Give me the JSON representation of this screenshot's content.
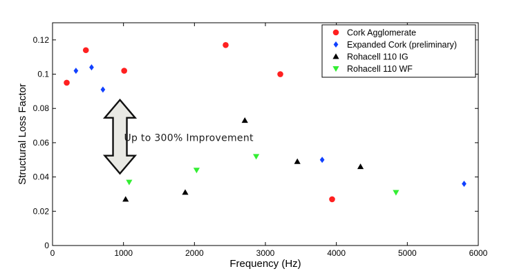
{
  "chart_data": {
    "type": "scatter",
    "title": "",
    "xlabel": "Frequency (Hz)",
    "ylabel": "Structural Loss Factor",
    "xlim": [
      0,
      6000
    ],
    "ylim": [
      0,
      0.13
    ],
    "xticks": [
      0,
      1000,
      2000,
      3000,
      4000,
      5000,
      6000
    ],
    "yticks": [
      0,
      0.02,
      0.04,
      0.06,
      0.08,
      0.1,
      0.12
    ],
    "xtick_labels": [
      "0",
      "1000",
      "2000",
      "3000",
      "4000",
      "5000",
      "6000"
    ],
    "ytick_labels": [
      "0",
      "0.02",
      "0.04",
      "0.06",
      "0.08",
      "0.1",
      "0.12"
    ],
    "grid": false,
    "legend_position": "top-right",
    "series": [
      {
        "name": "Cork Agglomerate",
        "color": "#ff2020",
        "marker": "circle",
        "x": [
          200,
          470,
          1010,
          2440,
          3210,
          3940
        ],
        "y": [
          0.095,
          0.114,
          0.102,
          0.117,
          0.1,
          0.027
        ]
      },
      {
        "name": "Expanded Cork (preliminary)",
        "color": "#1040ff",
        "marker": "diamond",
        "x": [
          330,
          550,
          710,
          3800,
          5800
        ],
        "y": [
          0.102,
          0.104,
          0.091,
          0.05,
          0.036
        ]
      },
      {
        "name": "Rohacell 110 IG",
        "color": "#000000",
        "marker": "triangle-up",
        "x": [
          1030,
          1870,
          2710,
          3450,
          4340
        ],
        "y": [
          0.027,
          0.031,
          0.073,
          0.049,
          0.046
        ]
      },
      {
        "name": "Rohacell 110 WF",
        "color": "#33ee33",
        "marker": "triangle-down",
        "x": [
          1080,
          2030,
          2870,
          4840
        ],
        "y": [
          0.037,
          0.044,
          0.052,
          0.031
        ]
      }
    ],
    "annotations": [
      {
        "text": "Up to 300% Improvement",
        "type": "double-arrow",
        "arrow_x": 950,
        "arrow_y_range": [
          0.042,
          0.085
        ],
        "text_x": 1300,
        "text_y": 0.063
      }
    ]
  }
}
